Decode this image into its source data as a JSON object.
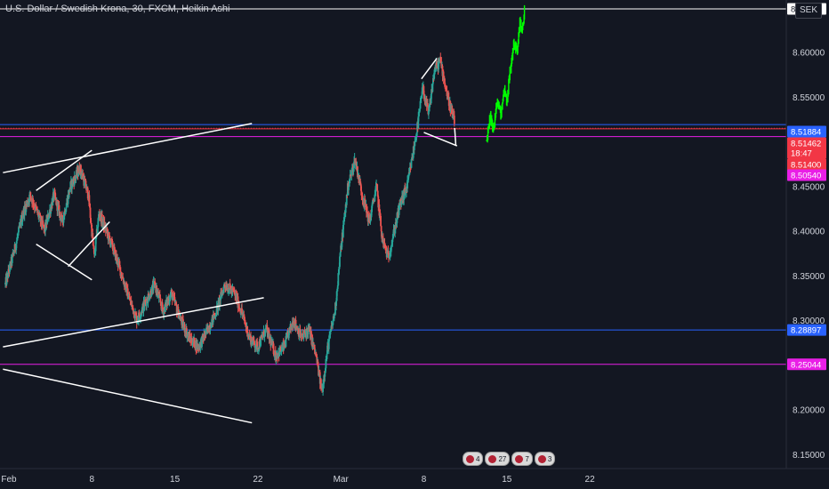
{
  "header": {
    "title": "U.S. Dollar / Swedish Krona, 30, FXCM, Heikin Ashi",
    "currency_button": "SEK"
  },
  "events": [
    {
      "label": "4"
    },
    {
      "label": "27"
    },
    {
      "label": "7"
    },
    {
      "label": "3"
    }
  ],
  "chart_data": {
    "type": "candlestick",
    "title": "U.S. Dollar / Swedish Krona, 30, FXCM, Heikin Ashi",
    "symbol": "USD/SEK",
    "timeframe": "30",
    "source": "FXCM",
    "chart_style": "Heikin Ashi",
    "ylim": [
      8.125,
      8.665
    ],
    "y_ticks": [
      {
        "value": 8.15,
        "label": "8.15000"
      },
      {
        "value": 8.2,
        "label": "8.20000"
      },
      {
        "value": 8.25,
        "label": "8.25000"
      },
      {
        "value": 8.3,
        "label": "8.30000"
      },
      {
        "value": 8.35,
        "label": "8.35000"
      },
      {
        "value": 8.4,
        "label": "8.40000"
      },
      {
        "value": 8.45,
        "label": "8.45000"
      },
      {
        "value": 8.5,
        "label": "8.50000"
      },
      {
        "value": 8.55,
        "label": "8.55000"
      },
      {
        "value": 8.6,
        "label": "8.60000"
      }
    ],
    "x_ticks": [
      {
        "day": 0,
        "label": "Feb"
      },
      {
        "day": 7,
        "label": "8"
      },
      {
        "day": 14,
        "label": "15"
      },
      {
        "day": 21,
        "label": "22"
      },
      {
        "day": 28,
        "label": "Mar"
      },
      {
        "day": 35,
        "label": "8"
      },
      {
        "day": 42,
        "label": "15"
      },
      {
        "day": 49,
        "label": "22"
      }
    ],
    "price_path": [
      [
        -0.3,
        8.34
      ],
      [
        0.5,
        8.38
      ],
      [
        1.2,
        8.42
      ],
      [
        1.8,
        8.44
      ],
      [
        2.4,
        8.42
      ],
      [
        3.0,
        8.4
      ],
      [
        3.8,
        8.44
      ],
      [
        4.5,
        8.41
      ],
      [
        5.2,
        8.45
      ],
      [
        6.0,
        8.47
      ],
      [
        6.7,
        8.44
      ],
      [
        7.2,
        8.37
      ],
      [
        7.6,
        8.42
      ],
      [
        8.2,
        8.4
      ],
      [
        8.8,
        8.38
      ],
      [
        9.3,
        8.36
      ],
      [
        10.0,
        8.33
      ],
      [
        10.8,
        8.3
      ],
      [
        11.5,
        8.32
      ],
      [
        12.3,
        8.34
      ],
      [
        13.0,
        8.31
      ],
      [
        13.7,
        8.33
      ],
      [
        14.5,
        8.3
      ],
      [
        15.2,
        8.28
      ],
      [
        16.0,
        8.27
      ],
      [
        16.8,
        8.29
      ],
      [
        17.5,
        8.31
      ],
      [
        18.2,
        8.34
      ],
      [
        19.0,
        8.33
      ],
      [
        19.6,
        8.31
      ],
      [
        20.3,
        8.28
      ],
      [
        21.0,
        8.27
      ],
      [
        21.7,
        8.29
      ],
      [
        22.5,
        8.26
      ],
      [
        23.2,
        8.27
      ],
      [
        24.0,
        8.3
      ],
      [
        24.7,
        8.28
      ],
      [
        25.3,
        8.29
      ],
      [
        25.9,
        8.26
      ],
      [
        26.4,
        8.22
      ],
      [
        26.9,
        8.27
      ],
      [
        27.5,
        8.31
      ],
      [
        28.0,
        8.38
      ],
      [
        28.6,
        8.45
      ],
      [
        29.2,
        8.48
      ],
      [
        29.8,
        8.44
      ],
      [
        30.4,
        8.41
      ],
      [
        31.0,
        8.45
      ],
      [
        31.5,
        8.39
      ],
      [
        32.0,
        8.37
      ],
      [
        32.5,
        8.4
      ],
      [
        33.0,
        8.43
      ],
      [
        33.6,
        8.45
      ],
      [
        34.0,
        8.48
      ],
      [
        34.5,
        8.52
      ],
      [
        34.9,
        8.56
      ],
      [
        35.4,
        8.53
      ],
      [
        35.9,
        8.58
      ],
      [
        36.4,
        8.59
      ],
      [
        37.0,
        8.55
      ],
      [
        37.6,
        8.52
      ]
    ],
    "projection_path": [
      [
        40.3,
        8.5
      ],
      [
        40.6,
        8.525
      ],
      [
        40.9,
        8.515
      ],
      [
        41.2,
        8.545
      ],
      [
        41.5,
        8.53
      ],
      [
        41.8,
        8.56
      ],
      [
        42.0,
        8.545
      ],
      [
        42.3,
        8.58
      ],
      [
        42.6,
        8.61
      ],
      [
        42.9,
        8.6
      ],
      [
        43.1,
        8.635
      ],
      [
        43.3,
        8.62
      ],
      [
        43.5,
        8.648
      ]
    ],
    "horizontal_levels": [
      {
        "price": 8.6483,
        "label": "8.64830",
        "color": "#ffffff"
      },
      {
        "price": 8.51884,
        "label": "8.51884",
        "color": "#2962ff"
      },
      {
        "price": 8.51462,
        "label": "8.51462",
        "color": "#f23645",
        "style": "dotted",
        "countdown": "18:47"
      },
      {
        "price": 8.514,
        "label": "8.51400",
        "color": "#f23645"
      },
      {
        "price": 8.5054,
        "label": "8.50540",
        "color": "#e91ee6"
      },
      {
        "price": 8.28897,
        "label": "8.28897",
        "color": "#2962ff"
      },
      {
        "price": 8.25044,
        "label": "8.25044",
        "color": "#e91ee6"
      }
    ],
    "trend_lines": [
      {
        "from": [
          -0.5,
          8.465
        ],
        "to": [
          20.5,
          8.52
        ],
        "color": "#ffffff"
      },
      {
        "from": [
          -0.5,
          8.27
        ],
        "to": [
          21.5,
          8.325
        ],
        "color": "#ffffff"
      },
      {
        "from": [
          -0.5,
          8.245
        ],
        "to": [
          20.5,
          8.185
        ],
        "color": "#ffffff"
      },
      {
        "from": [
          2.3,
          8.445
        ],
        "to": [
          7.0,
          8.49
        ],
        "color": "#ffffff"
      },
      {
        "from": [
          2.3,
          8.385
        ],
        "to": [
          7.0,
          8.345
        ],
        "color": "#ffffff"
      },
      {
        "from": [
          5.0,
          8.36
        ],
        "to": [
          8.5,
          8.41
        ],
        "color": "#ffffff"
      },
      {
        "from": [
          34.8,
          8.57
        ],
        "to": [
          36.1,
          8.593
        ],
        "color": "#ffffff"
      },
      {
        "from": [
          35.0,
          8.51
        ],
        "to": [
          37.8,
          8.495
        ],
        "color": "#ffffff"
      },
      {
        "from": [
          37.6,
          8.515
        ],
        "to": [
          37.7,
          8.495
        ],
        "color": "#ffffff"
      }
    ],
    "grid": false,
    "legend": "none"
  }
}
